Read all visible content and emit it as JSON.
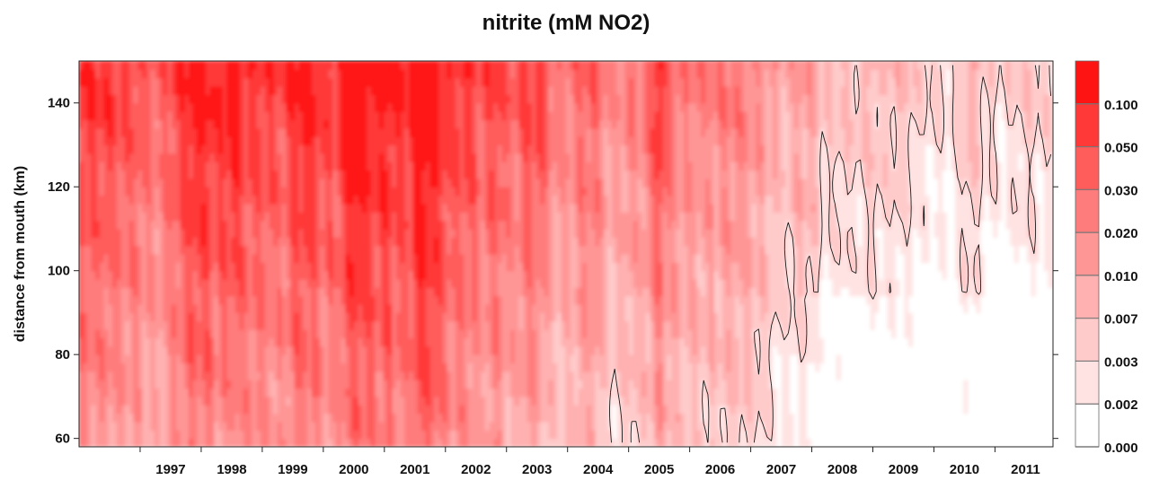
{
  "chart_data": {
    "type": "heatmap",
    "title": "nitrite (mM NO2)",
    "xlabel": "",
    "ylabel": "distance from mouth (km)",
    "x_ticks": [
      "1997",
      "1998",
      "1999",
      "2000",
      "2001",
      "2002",
      "2003",
      "2004",
      "2005",
      "2006",
      "2007",
      "2008",
      "2009",
      "2010",
      "2011"
    ],
    "x_range": [
      1996.0,
      2011.95
    ],
    "y_ticks": [
      60,
      80,
      100,
      120,
      140
    ],
    "y_range": [
      58,
      150
    ],
    "colorbar_levels": [
      "0.000",
      "0.002",
      "0.003",
      "0.007",
      "0.010",
      "0.020",
      "0.030",
      "0.050",
      "0.100"
    ],
    "colorbar_colors": [
      "#ffffff",
      "#ffe3e3",
      "#ffcaca",
      "#ffb0b0",
      "#ff9696",
      "#ff7c7c",
      "#ff5c5c",
      "#ff3838",
      "#ff1414"
    ],
    "grid": false,
    "legend": "colorbar-right"
  }
}
